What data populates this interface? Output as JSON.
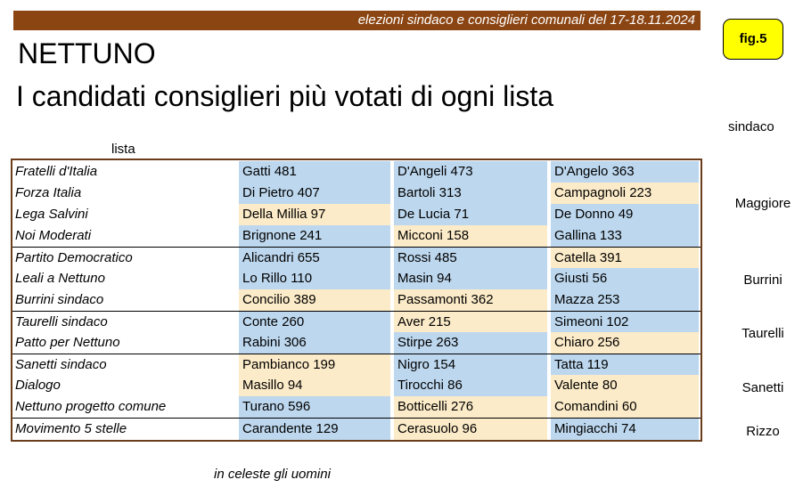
{
  "header": {
    "banner": "elezioni sindaco e consiglieri comunali del 17-18.11.2024",
    "fig_label": "fig.5",
    "city": "NETTUNO",
    "subtitle": "I candidati consiglieri più votati di ogni lista",
    "col_lista": "lista",
    "col_sindaco": "sindaco"
  },
  "colors": {
    "uomini": "#bdd7ee",
    "donne": "#fcebc8",
    "banner": "#8b4513",
    "border": "#6b3d1b",
    "fig_bg": "#ffff00"
  },
  "rows": [
    {
      "lista": "Fratelli d'Italia",
      "candidates": [
        {
          "text": "Gatti  481",
          "g": "m"
        },
        {
          "text": "D'Angeli 473",
          "g": "m"
        },
        {
          "text": "D'Angelo 363",
          "g": "m"
        }
      ]
    },
    {
      "lista": "Forza Italia",
      "candidates": [
        {
          "text": "Di Pietro 407",
          "g": "m"
        },
        {
          "text": "Bartoli 313",
          "g": "m"
        },
        {
          "text": "Campagnoli 223",
          "g": "f"
        }
      ]
    },
    {
      "lista": "Lega Salvini",
      "candidates": [
        {
          "text": "Della Millia 97",
          "g": "f"
        },
        {
          "text": "De Lucia 71",
          "g": "m"
        },
        {
          "text": "De Donno 49",
          "g": "m"
        }
      ]
    },
    {
      "lista": "Noi Moderati",
      "candidates": [
        {
          "text": "Brignone 241",
          "g": "m"
        },
        {
          "text": "Micconi 158",
          "g": "f"
        },
        {
          "text": "Gallina 133",
          "g": "m"
        }
      ]
    },
    {
      "lista": "Partito Democratico",
      "candidates": [
        {
          "text": "Alicandri 655",
          "g": "m"
        },
        {
          "text": "Rossi 485",
          "g": "m"
        },
        {
          "text": "Catella 391",
          "g": "f"
        }
      ]
    },
    {
      "lista": "Leali a Nettuno",
      "candidates": [
        {
          "text": "Lo Rillo 110",
          "g": "m"
        },
        {
          "text": "Masin 94",
          "g": "m"
        },
        {
          "text": "Giusti 56",
          "g": "m"
        }
      ]
    },
    {
      "lista": "Burrini sindaco",
      "candidates": [
        {
          "text": "Concilio 389",
          "g": "f"
        },
        {
          "text": "Passamonti 362",
          "g": "f"
        },
        {
          "text": "Mazza 253",
          "g": "m"
        }
      ]
    },
    {
      "lista": "Taurelli sindaco",
      "candidates": [
        {
          "text": "Conte 260",
          "g": "m"
        },
        {
          "text": "Aver 215",
          "g": "f"
        },
        {
          "text": "Simeoni 102",
          "g": "m"
        }
      ]
    },
    {
      "lista": "Patto per Nettuno",
      "candidates": [
        {
          "text": "Rabini 306",
          "g": "m"
        },
        {
          "text": "Stirpe 263",
          "g": "m"
        },
        {
          "text": "Chiaro 256",
          "g": "f"
        }
      ]
    },
    {
      "lista": "Sanetti sindaco",
      "candidates": [
        {
          "text": "Pambianco 199",
          "g": "f"
        },
        {
          "text": "Nigro 154",
          "g": "m"
        },
        {
          "text": "Tatta 119",
          "g": "m"
        }
      ]
    },
    {
      "lista": "Dialogo",
      "candidates": [
        {
          "text": "Masillo 94",
          "g": "f"
        },
        {
          "text": "Tirocchi 86",
          "g": "m"
        },
        {
          "text": "Valente 80",
          "g": "f"
        }
      ]
    },
    {
      "lista": "Nettuno progetto comune",
      "candidates": [
        {
          "text": "Turano 596",
          "g": "m"
        },
        {
          "text": "Botticelli 276",
          "g": "f"
        },
        {
          "text": "Comandini 60",
          "g": "f"
        }
      ]
    },
    {
      "lista": "Movimento 5 stelle",
      "candidates": [
        {
          "text": "Carandente 129",
          "g": "m"
        },
        {
          "text": "Cerasuolo 96",
          "g": "f"
        },
        {
          "text": "Mingiacchi 74",
          "g": "m"
        }
      ]
    }
  ],
  "mayors": [
    "Maggiore",
    "Burrini",
    "Taurelli",
    "Sanetti",
    "Rizzo"
  ],
  "footer_note": "in celeste gli uomini"
}
